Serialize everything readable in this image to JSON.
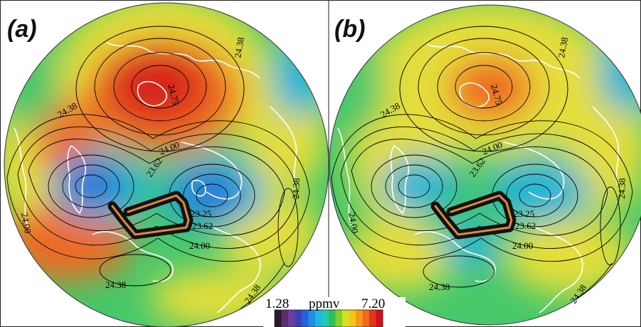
{
  "panels": [
    {
      "id": "a",
      "label": "(a)",
      "contour_labels": [
        "24.38",
        "24.75",
        "24.38",
        "24.00",
        "23.62",
        "24.00",
        "23.25",
        "23.62",
        "24.00",
        "24.38",
        "24.38",
        "24.38"
      ]
    },
    {
      "id": "b",
      "label": "(b)",
      "contour_labels": [
        "24.38",
        "24.75",
        "24.38",
        "24.00",
        "23.62",
        "24.00",
        "23.25",
        "23.62",
        "24.00",
        "24.38",
        "24.38",
        "24.38"
      ]
    }
  ],
  "colorbar": {
    "min_label": "1.28",
    "max_label": "7.20",
    "units": "ppmv",
    "colors": [
      "#2b1a2e",
      "#5a2e6e",
      "#6b3fa0",
      "#3b3fb8",
      "#2a5fd6",
      "#1f8fe0",
      "#1fb8e0",
      "#22c9b4",
      "#2fbf5a",
      "#7fd12a",
      "#d8e020",
      "#f5c518",
      "#f59a18",
      "#ef6a1a",
      "#e2361c",
      "#d1121a"
    ]
  },
  "colors": {
    "cold": "#2a6fd6",
    "cool": "#1fb5d8",
    "mid": "#47c86a",
    "warm": "#e4de3a",
    "hot": "#ee6a22",
    "hottest": "#d8261c",
    "flight_path": "#e08a3a"
  }
}
